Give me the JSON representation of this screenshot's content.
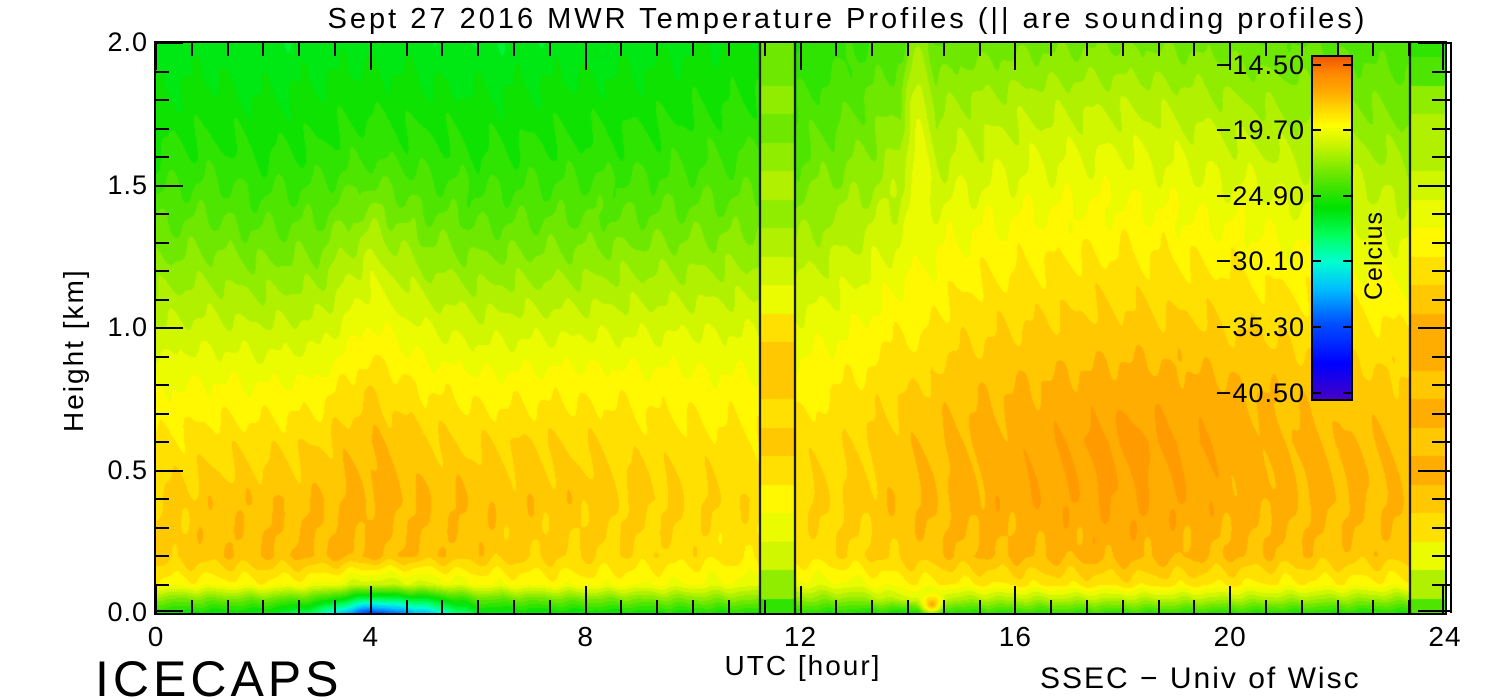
{
  "title": "Sept 27 2016 MWR Temperature Profiles (|| are sounding profiles)",
  "footer": {
    "left": "ICECAPS",
    "right": "SSEC − Univ of Wisc"
  },
  "axes": {
    "x": {
      "label": "UTC [hour]",
      "range": [
        0,
        24
      ],
      "ticks": [
        0,
        4,
        8,
        12,
        16,
        20,
        24
      ],
      "minor_intervals_per_major": 6
    },
    "y": {
      "label": "Height [km]",
      "range": [
        0,
        2
      ],
      "tick_values": [
        0.0,
        0.5,
        1.0,
        1.5,
        2.0
      ],
      "tick_labels": [
        "0.0",
        "0.5",
        "1.0",
        "1.5",
        "2.0"
      ],
      "minor_step": 0.1
    }
  },
  "colorbar": {
    "title": "Celcius",
    "tick_labels": [
      "−14.50",
      "−19.70",
      "−24.90",
      "−30.10",
      "−35.30",
      "−40.50"
    ],
    "tick_values": [
      -14.5,
      -19.7,
      -24.9,
      -30.1,
      -35.3,
      -40.5
    ],
    "vmax": -13.9,
    "vmin": -41.0,
    "gradient_stops": [
      [
        0.0,
        "#4600C8"
      ],
      [
        0.1,
        "#0000FF"
      ],
      [
        0.22,
        "#0050FF"
      ],
      [
        0.32,
        "#00BEFF"
      ],
      [
        0.4,
        "#00FFD2"
      ],
      [
        0.48,
        "#00FF5A"
      ],
      [
        0.56,
        "#00E100"
      ],
      [
        0.66,
        "#6EE800"
      ],
      [
        0.74,
        "#C8F400"
      ],
      [
        0.8,
        "#FFFF00"
      ],
      [
        0.86,
        "#FFCE00"
      ],
      [
        0.9,
        "#FFAA00"
      ],
      [
        0.95,
        "#FF8C00"
      ],
      [
        1.0,
        "#F25800"
      ]
    ]
  },
  "colors": {
    "axis": "#000000",
    "background": "#ffffff",
    "sounding_line": "#000000"
  },
  "chart_data": {
    "type": "heatmap",
    "title": "Sept 27 2016 MWR Temperature Profiles (|| are sounding profiles)",
    "xlabel": "UTC [hour]",
    "ylabel": "Height [km]",
    "units": "Celcius",
    "xlim": [
      0,
      24
    ],
    "ylim": [
      0,
      2
    ],
    "contour_step_c": 0.8,
    "x_hours": [
      0,
      1,
      2,
      3,
      4,
      5,
      6,
      7,
      8,
      9,
      10,
      11,
      12,
      13,
      14,
      15,
      16,
      17,
      18,
      19,
      20,
      21,
      22,
      23,
      24
    ],
    "heights_km": [
      2.0,
      1.8,
      1.6,
      1.4,
      1.2,
      1.0,
      0.8,
      0.6,
      0.4,
      0.2,
      0.1,
      0.05,
      0.0
    ],
    "temperature_c": [
      [
        -26.5,
        -26.3,
        -26.6,
        -26.4,
        -26.2,
        -26.4,
        -26.6,
        -26.5,
        -26.3,
        -26.2,
        -26.0,
        -25.8,
        -25.0,
        -24.5,
        -23.8,
        -23.2,
        -23.0,
        -22.9,
        -22.8,
        -22.9,
        -23.1,
        -23.4,
        -23.7,
        -24.0,
        -24.3
      ],
      [
        -25.8,
        -25.6,
        -25.9,
        -25.7,
        -25.4,
        -25.6,
        -25.8,
        -25.7,
        -25.6,
        -25.5,
        -25.3,
        -25.1,
        -24.3,
        -23.7,
        -22.6,
        -21.9,
        -21.6,
        -21.4,
        -21.3,
        -21.5,
        -21.8,
        -22.2,
        -22.6,
        -23.0,
        -23.3
      ],
      [
        -25.0,
        -24.8,
        -25.1,
        -24.9,
        -24.4,
        -24.7,
        -25.0,
        -24.9,
        -24.8,
        -24.7,
        -24.5,
        -24.3,
        -23.5,
        -22.8,
        -21.6,
        -20.9,
        -20.5,
        -20.3,
        -20.2,
        -20.4,
        -20.7,
        -21.1,
        -21.5,
        -21.9,
        -22.2
      ],
      [
        -23.8,
        -23.6,
        -23.9,
        -23.7,
        -22.4,
        -23.4,
        -23.8,
        -23.7,
        -23.6,
        -23.5,
        -23.3,
        -23.2,
        -22.4,
        -21.7,
        -20.6,
        -19.9,
        -19.6,
        -19.4,
        -19.3,
        -19.5,
        -19.7,
        -20.0,
        -20.4,
        -20.8,
        -21.0
      ],
      [
        -22.4,
        -22.2,
        -22.5,
        -22.3,
        -20.6,
        -21.9,
        -22.3,
        -22.2,
        -22.1,
        -22.0,
        -21.9,
        -21.8,
        -21.2,
        -20.6,
        -19.6,
        -19.0,
        -18.7,
        -18.5,
        -18.4,
        -18.5,
        -18.7,
        -19.0,
        -19.3,
        -19.6,
        -19.8
      ],
      [
        -21.0,
        -20.8,
        -21.0,
        -20.8,
        -19.4,
        -20.3,
        -20.7,
        -20.6,
        -20.5,
        -20.5,
        -20.4,
        -20.4,
        -20.0,
        -19.5,
        -18.7,
        -18.2,
        -17.9,
        -17.7,
        -17.6,
        -17.7,
        -17.9,
        -18.1,
        -18.4,
        -18.6,
        -18.8
      ],
      [
        -19.6,
        -19.4,
        -19.5,
        -19.3,
        -18.0,
        -18.8,
        -19.2,
        -19.1,
        -19.0,
        -19.1,
        -19.2,
        -19.3,
        -19.1,
        -18.6,
        -17.9,
        -17.4,
        -17.1,
        -16.9,
        -16.7,
        -16.8,
        -17.0,
        -17.3,
        -17.5,
        -17.7,
        -17.8
      ],
      [
        -18.6,
        -18.3,
        -18.2,
        -18.0,
        -17.1,
        -17.7,
        -18.0,
        -17.9,
        -18.0,
        -18.2,
        -18.4,
        -18.5,
        -18.4,
        -18.0,
        -17.4,
        -16.9,
        -16.7,
        -16.4,
        -16.1,
        -16.2,
        -16.6,
        -16.9,
        -17.1,
        -17.2,
        -17.2
      ],
      [
        -17.9,
        -17.5,
        -17.3,
        -17.2,
        -16.8,
        -17.1,
        -17.3,
        -17.4,
        -17.5,
        -17.7,
        -17.9,
        -18.1,
        -18.0,
        -17.7,
        -17.2,
        -16.8,
        -16.6,
        -16.5,
        -16.4,
        -16.5,
        -16.7,
        -16.9,
        -17.0,
        -17.1,
        -16.9
      ],
      [
        -17.6,
        -17.4,
        -17.2,
        -17.0,
        -16.9,
        -17.3,
        -17.5,
        -17.7,
        -17.9,
        -18.1,
        -18.3,
        -18.5,
        -18.4,
        -18.0,
        -17.6,
        -17.2,
        -17.0,
        -16.9,
        -16.8,
        -16.9,
        -17.1,
        -17.3,
        -17.4,
        -17.5,
        -17.3
      ],
      [
        -19.0,
        -19.2,
        -19.0,
        -19.5,
        -21.0,
        -20.5,
        -19.5,
        -19.3,
        -19.2,
        -19.4,
        -19.6,
        -19.8,
        -19.9,
        -19.7,
        -19.0,
        -18.8,
        -18.6,
        -18.5,
        -18.4,
        -18.5,
        -18.7,
        -18.9,
        -19.0,
        -19.1,
        -19.0
      ],
      [
        -22.5,
        -22.8,
        -23.0,
        -24.0,
        -28.0,
        -26.5,
        -23.5,
        -23.0,
        -22.8,
        -22.6,
        -22.5,
        -22.4,
        -22.3,
        -22.2,
        -20.5,
        -21.5,
        -21.3,
        -21.2,
        -21.1,
        -21.2,
        -21.4,
        -21.6,
        -21.8,
        -22.0,
        -22.0
      ],
      [
        -25.5,
        -25.8,
        -26.0,
        -28.5,
        -36.0,
        -32.0,
        -26.5,
        -26.0,
        -25.8,
        -25.6,
        -25.4,
        -25.2,
        -25.0,
        -25.2,
        -25.5,
        -25.0,
        -24.8,
        -24.7,
        -24.6,
        -24.7,
        -24.9,
        -25.0,
        -25.1,
        -25.2,
        -25.3
      ]
    ],
    "soundings": [
      {
        "name": "sounding-1",
        "t_start": 11.25,
        "t_end": 11.9,
        "heights_km_top_to_bottom_step": 0.1,
        "temperature_c": [
          -22.8,
          -23.4,
          -22.6,
          -23.2,
          -22.4,
          -21.8,
          -22.3,
          -21.4,
          -20.6,
          -19.6,
          -18.4,
          -17.1,
          -17.9,
          -18.2,
          -17.8,
          -18.3,
          -18.9,
          -19.6,
          -20.8,
          -22.4,
          -24.3
        ]
      },
      {
        "name": "sounding-2",
        "t_start": 23.35,
        "t_end": 24.0,
        "heights_km_top_to_bottom_step": 0.1,
        "temperature_c": [
          -24.6,
          -23.6,
          -22.6,
          -21.9,
          -21.3,
          -20.6,
          -19.9,
          -19.0,
          -18.2,
          -17.6,
          -17.0,
          -16.5,
          -17.2,
          -16.6,
          -17.4,
          -17.0,
          -17.8,
          -18.6,
          -19.6,
          -21.6,
          -24.0
        ]
      }
    ],
    "anomalies": [
      {
        "name": "surface-warm-spot",
        "t": 14.45,
        "h": 0.03,
        "value": -15.3,
        "rt": 0.28,
        "rh": 0.05
      },
      {
        "name": "warm-spike",
        "t": 14.2,
        "h": 1.5,
        "value": -19.5,
        "rt": 0.35,
        "rh": 0.85
      }
    ],
    "legend_position": "right-inside",
    "grid": false
  }
}
